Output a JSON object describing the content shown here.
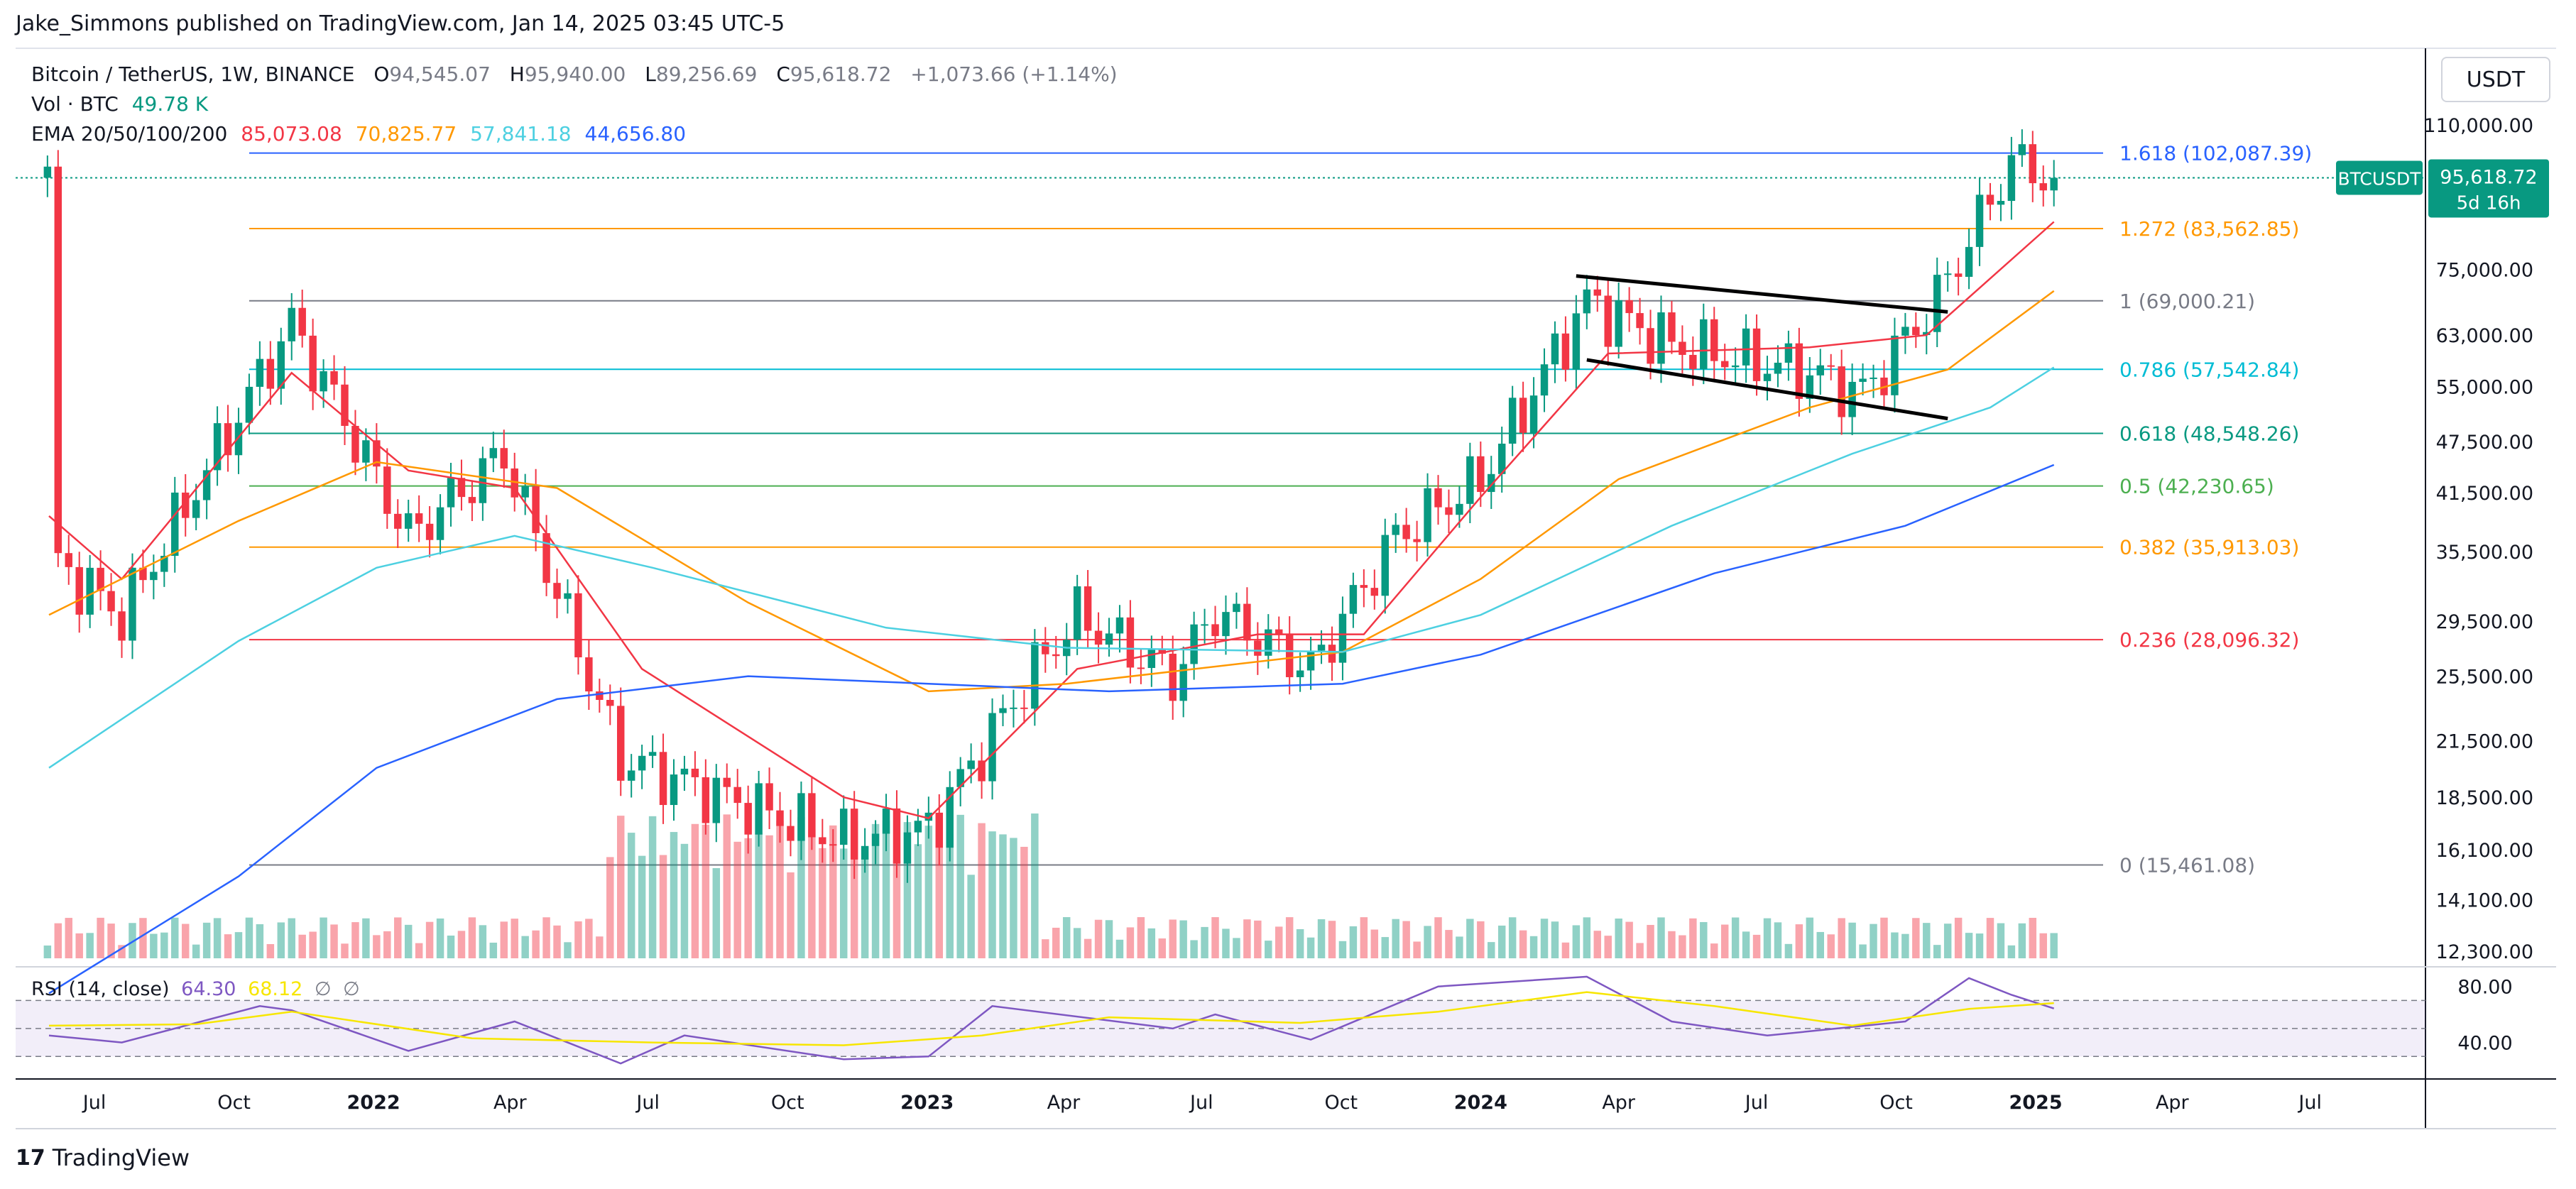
{
  "header": {
    "published": "Jake_Simmons published on TradingView.com, Jan 14, 2025 03:45 UTC-5"
  },
  "legend": {
    "symbol": "Bitcoin / TetherUS, 1W, BINANCE",
    "ohlc": {
      "o_label": "O",
      "o": "94,545.07",
      "h_label": "H",
      "h": "95,940.00",
      "l_label": "L",
      "l": "89,256.69",
      "c_label": "C",
      "c": "95,618.72",
      "change": "+1,073.66 (+1.14%)"
    },
    "volume_label": "Vol · BTC",
    "volume_value": "49.78 K",
    "ema_label": "EMA 20/50/100/200",
    "ema_values": [
      "85,073.08",
      "70,825.77",
      "57,841.18",
      "44,656.80"
    ],
    "ema_colors": [
      "#f23645",
      "#ff9800",
      "#4dd0e1",
      "#2962ff"
    ]
  },
  "currency_button": "USDT",
  "price_tag": {
    "symbol": "BTCUSDT",
    "price": "95,618.72",
    "countdown": "5d 16h"
  },
  "rsi": {
    "label": "RSI (14, close)",
    "value": "64.30",
    "ma_value": "68.12",
    "empty1": "∅",
    "empty2": "∅",
    "ticks": [
      "80.00",
      "40.00"
    ]
  },
  "brand": {
    "name": "TradingView"
  },
  "chart_data": {
    "type": "candlestick",
    "scale": "log",
    "y_ticks": [
      "110,000.00",
      "75,000.00",
      "63,000.00",
      "55,000.00",
      "47,500.00",
      "41,500.00",
      "35,500.00",
      "29,500.00",
      "25,500.00",
      "21,500.00",
      "18,500.00",
      "16,100.00",
      "14,100.00",
      "12,300.00"
    ],
    "y_tick_values": [
      110000,
      75000,
      63000,
      55000,
      47500,
      41500,
      35500,
      29500,
      25500,
      21500,
      18500,
      16100,
      14100,
      12300
    ],
    "x_ticks": [
      "Jul",
      "Oct",
      "2022",
      "Apr",
      "Jul",
      "Oct",
      "2023",
      "Apr",
      "Jul",
      "Oct",
      "2024",
      "Apr",
      "Jul",
      "Oct",
      "2025",
      "Apr",
      "Jul"
    ],
    "x_tick_dates": [
      "2021-07-01",
      "2021-10-01",
      "2022-01-01",
      "2022-04-01",
      "2022-07-01",
      "2022-10-01",
      "2023-01-01",
      "2023-04-01",
      "2023-07-01",
      "2023-10-01",
      "2024-01-01",
      "2024-04-01",
      "2024-07-01",
      "2024-10-01",
      "2025-01-01",
      "2025-04-01",
      "2025-07-01"
    ],
    "fib_levels": [
      {
        "ratio": "1.618",
        "label": "1.618 (102,087.39)",
        "value": 102087.39,
        "color": "#2962ff"
      },
      {
        "ratio": "1.272",
        "label": "1.272 (83,562.85)",
        "value": 83562.85,
        "color": "#ff9800"
      },
      {
        "ratio": "1",
        "label": "1 (69,000.21)",
        "value": 69000.21,
        "color": "#787b86"
      },
      {
        "ratio": "0.786",
        "label": "0.786 (57,542.84)",
        "value": 57542.84,
        "color": "#00bcd4"
      },
      {
        "ratio": "0.618",
        "label": "0.618 (48,548.26)",
        "value": 48548.26,
        "color": "#089981"
      },
      {
        "ratio": "0.5",
        "label": "0.5 (42,230.65)",
        "value": 42230.65,
        "color": "#4caf50"
      },
      {
        "ratio": "0.382",
        "label": "0.382 (35,913.03)",
        "value": 35913.03,
        "color": "#ff9800"
      },
      {
        "ratio": "0.236",
        "label": "0.236 (28,096.32)",
        "value": 28096.32,
        "color": "#f23645"
      },
      {
        "ratio": "0",
        "label": "0 (15,461.08)",
        "value": 15461.08,
        "color": "#787b86"
      }
    ],
    "trend_lines": [
      {
        "name": "upper",
        "start": [
          "2024-03-04",
          73700
        ],
        "end": [
          "2024-11-04",
          67000
        ]
      },
      {
        "name": "lower",
        "start": [
          "2024-03-11",
          59000
        ],
        "end": [
          "2024-11-04",
          50500
        ]
      }
    ],
    "key_points": [
      {
        "date": "2021-06-01",
        "close": 35000
      },
      {
        "date": "2021-07-19",
        "close": 30000
      },
      {
        "date": "2021-11-08",
        "close": 65000
      },
      {
        "date": "2022-01-24",
        "close": 37000
      },
      {
        "date": "2022-03-28",
        "close": 46000
      },
      {
        "date": "2022-06-13",
        "close": 20500
      },
      {
        "date": "2022-11-07",
        "close": 16500
      },
      {
        "date": "2023-01-02",
        "close": 17000
      },
      {
        "date": "2023-03-13",
        "close": 26000
      },
      {
        "date": "2023-04-10",
        "close": 30000
      },
      {
        "date": "2023-06-12",
        "close": 25500
      },
      {
        "date": "2023-07-10",
        "close": 30300
      },
      {
        "date": "2023-09-11",
        "close": 26000
      },
      {
        "date": "2023-11-06",
        "close": 37000
      },
      {
        "date": "2024-01-01",
        "close": 43000
      },
      {
        "date": "2024-03-11",
        "close": 69000
      },
      {
        "date": "2024-05-06",
        "close": 61500
      },
      {
        "date": "2024-08-05",
        "close": 57000
      },
      {
        "date": "2024-09-09",
        "close": 54000
      },
      {
        "date": "2024-10-28",
        "close": 69500
      },
      {
        "date": "2024-12-16",
        "close": 100000
      },
      {
        "date": "2025-01-13",
        "close": 95618.72
      }
    ],
    "ema20": [
      [
        "2021-06-01",
        39000
      ],
      [
        "2021-07-19",
        33000
      ],
      [
        "2021-11-08",
        57000
      ],
      [
        "2022-01-24",
        44000
      ],
      [
        "2022-04-04",
        42000
      ],
      [
        "2022-06-27",
        26000
      ],
      [
        "2022-11-07",
        18500
      ],
      [
        "2023-01-02",
        17500
      ],
      [
        "2023-04-10",
        26000
      ],
      [
        "2023-08-07",
        28500
      ],
      [
        "2023-10-16",
        28500
      ],
      [
        "2024-01-01",
        41000
      ],
      [
        "2024-03-25",
        60000
      ],
      [
        "2024-08-05",
        61000
      ],
      [
        "2024-10-21",
        63000
      ],
      [
        "2025-01-13",
        85073.08
      ]
    ],
    "ema50": [
      [
        "2021-06-01",
        30000
      ],
      [
        "2021-10-04",
        38500
      ],
      [
        "2022-01-03",
        45000
      ],
      [
        "2022-05-02",
        42000
      ],
      [
        "2022-09-05",
        31000
      ],
      [
        "2023-01-02",
        24500
      ],
      [
        "2023-04-03",
        25000
      ],
      [
        "2023-10-02",
        27200
      ],
      [
        "2024-01-01",
        33000
      ],
      [
        "2024-04-01",
        43000
      ],
      [
        "2024-08-05",
        52000
      ],
      [
        "2024-11-04",
        57500
      ],
      [
        "2025-01-13",
        70825.77
      ]
    ],
    "ema100": [
      [
        "2021-06-01",
        20000
      ],
      [
        "2021-10-04",
        28000
      ],
      [
        "2022-01-03",
        34000
      ],
      [
        "2022-04-04",
        37000
      ],
      [
        "2022-07-04",
        34000
      ],
      [
        "2022-12-05",
        29000
      ],
      [
        "2023-04-03",
        27500
      ],
      [
        "2023-10-02",
        27200
      ],
      [
        "2024-01-01",
        30000
      ],
      [
        "2024-05-06",
        38000
      ],
      [
        "2024-09-02",
        46000
      ],
      [
        "2024-12-02",
        52000
      ],
      [
        "2025-01-13",
        57841.18
      ]
    ],
    "ema200": [
      [
        "2021-06-01",
        11000
      ],
      [
        "2021-10-04",
        15000
      ],
      [
        "2022-01-03",
        20000
      ],
      [
        "2022-05-02",
        24000
      ],
      [
        "2022-09-05",
        25500
      ],
      [
        "2023-01-02",
        25000
      ],
      [
        "2023-05-01",
        24500
      ],
      [
        "2023-10-02",
        25000
      ],
      [
        "2024-01-01",
        27000
      ],
      [
        "2024-06-03",
        33500
      ],
      [
        "2024-10-07",
        38000
      ],
      [
        "2025-01-13",
        44656.8
      ]
    ],
    "rsi_points": [
      [
        "2021-06-01",
        45
      ],
      [
        "2021-07-19",
        40
      ],
      [
        "2021-10-18",
        66
      ],
      [
        "2021-11-08",
        63
      ],
      [
        "2022-01-24",
        34
      ],
      [
        "2022-04-04",
        55
      ],
      [
        "2022-06-13",
        25
      ],
      [
        "2022-07-25",
        45
      ],
      [
        "2022-11-07",
        28
      ],
      [
        "2023-01-02",
        30
      ],
      [
        "2023-02-13",
        66
      ],
      [
        "2023-06-12",
        50
      ],
      [
        "2023-07-10",
        60
      ],
      [
        "2023-09-11",
        42
      ],
      [
        "2023-12-04",
        80
      ],
      [
        "2024-03-11",
        87
      ],
      [
        "2024-05-06",
        55
      ],
      [
        "2024-07-08",
        45
      ],
      [
        "2024-08-05",
        48
      ],
      [
        "2024-10-07",
        55
      ],
      [
        "2024-11-18",
        86
      ],
      [
        "2024-12-16",
        74
      ],
      [
        "2025-01-13",
        64.3
      ]
    ],
    "rsi_ma_points": [
      [
        "2021-06-01",
        52
      ],
      [
        "2021-09-06",
        53
      ],
      [
        "2021-11-08",
        62
      ],
      [
        "2022-03-07",
        43
      ],
      [
        "2022-07-04",
        40
      ],
      [
        "2022-11-07",
        38
      ],
      [
        "2023-02-06",
        45
      ],
      [
        "2023-05-01",
        58
      ],
      [
        "2023-09-04",
        54
      ],
      [
        "2023-12-04",
        62
      ],
      [
        "2024-03-11",
        76
      ],
      [
        "2024-06-03",
        66
      ],
      [
        "2024-09-02",
        52
      ],
      [
        "2024-11-18",
        64
      ],
      [
        "2025-01-13",
        68.12
      ]
    ],
    "rsi_bands": {
      "upper": 70,
      "mid": 50,
      "lower": 30
    }
  }
}
